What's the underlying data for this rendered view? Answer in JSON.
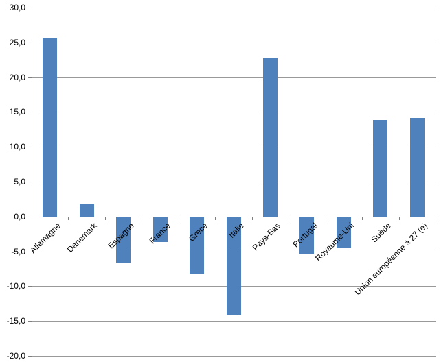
{
  "chart_data": {
    "type": "bar",
    "title": "",
    "xlabel": "",
    "ylabel": "",
    "categories": [
      "Allemagne",
      "Danemark",
      "Espagne",
      "France",
      "Grèce",
      "Italie",
      "Pays-Bas",
      "Portugal",
      "Royaume-Uni",
      "Suède",
      "Union européenne à 27 (e)"
    ],
    "values": [
      25.7,
      1.8,
      -6.6,
      -3.5,
      -8.1,
      -14.0,
      22.8,
      -5.3,
      -4.4,
      13.9,
      14.2
    ],
    "ylim": [
      -20,
      30
    ],
    "ytick_step": 5,
    "ytick_labels": [
      "30,0",
      "25,0",
      "20,0",
      "15,0",
      "10,0",
      "5,0",
      "0,0",
      "-5,0",
      "-10,0",
      "-15,0",
      "-20,0"
    ],
    "decimal_separator": ",",
    "grid": "horizontal",
    "legend": "none",
    "x_labels_rotation_deg": 45
  },
  "style": {
    "bar_color": "#4f81bd",
    "gridline_color": "#999999",
    "axis_color": "#7f7f7f",
    "text_color": "#000000",
    "background_color": "#ffffff"
  }
}
